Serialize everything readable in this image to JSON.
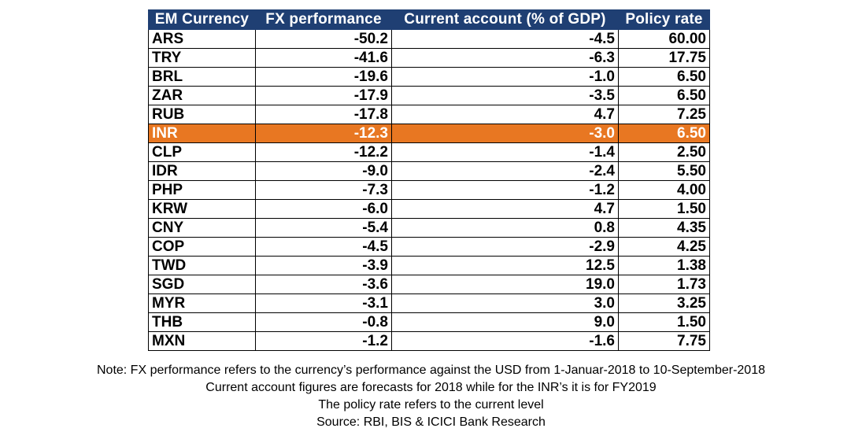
{
  "table": {
    "headers": [
      "EM Currency",
      "FX performance",
      "Current account (% of GDP)",
      "Policy rate"
    ],
    "rows": [
      {
        "currency": "ARS",
        "fx": "-50.2",
        "ca": "-4.5",
        "rate": "60.00"
      },
      {
        "currency": "TRY",
        "fx": "-41.6",
        "ca": "-6.3",
        "rate": "17.75"
      },
      {
        "currency": "BRL",
        "fx": "-19.6",
        "ca": "-1.0",
        "rate": "6.50"
      },
      {
        "currency": "ZAR",
        "fx": "-17.9",
        "ca": "-3.5",
        "rate": "6.50"
      },
      {
        "currency": "RUB",
        "fx": "-17.8",
        "ca": "4.7",
        "rate": "7.25"
      },
      {
        "currency": "INR",
        "fx": "-12.3",
        "ca": "-3.0",
        "rate": "6.50",
        "highlight": true
      },
      {
        "currency": "CLP",
        "fx": "-12.2",
        "ca": "-1.4",
        "rate": "2.50"
      },
      {
        "currency": "IDR",
        "fx": "-9.0",
        "ca": "-2.4",
        "rate": "5.50"
      },
      {
        "currency": "PHP",
        "fx": "-7.3",
        "ca": "-1.2",
        "rate": "4.00"
      },
      {
        "currency": "KRW",
        "fx": "-6.0",
        "ca": "4.7",
        "rate": "1.50"
      },
      {
        "currency": "CNY",
        "fx": "-5.4",
        "ca": "0.8",
        "rate": "4.35"
      },
      {
        "currency": "COP",
        "fx": "-4.5",
        "ca": "-2.9",
        "rate": "4.25"
      },
      {
        "currency": "TWD",
        "fx": "-3.9",
        "ca": "12.5",
        "rate": "1.38"
      },
      {
        "currency": "SGD",
        "fx": "-3.6",
        "ca": "19.0",
        "rate": "1.73"
      },
      {
        "currency": "MYR",
        "fx": "-3.1",
        "ca": "3.0",
        "rate": "3.25"
      },
      {
        "currency": "THB",
        "fx": "-0.8",
        "ca": "9.0",
        "rate": "1.50"
      },
      {
        "currency": "MXN",
        "fx": "-1.2",
        "ca": "-1.6",
        "rate": "7.75"
      }
    ]
  },
  "notes": {
    "line1": "Note: FX performance refers to the currency’s performance against the USD from 1-Januar-2018 to 10-September-2018",
    "line2": "Current account figures are forecasts for 2018 while for the INR’s it is for FY2019",
    "line3": "The policy rate refers to the current level",
    "line4": "Source: RBI, BIS & ICICI Bank Research"
  },
  "colors": {
    "header_bg": "#1f3f73",
    "highlight_bg": "#e87722"
  }
}
